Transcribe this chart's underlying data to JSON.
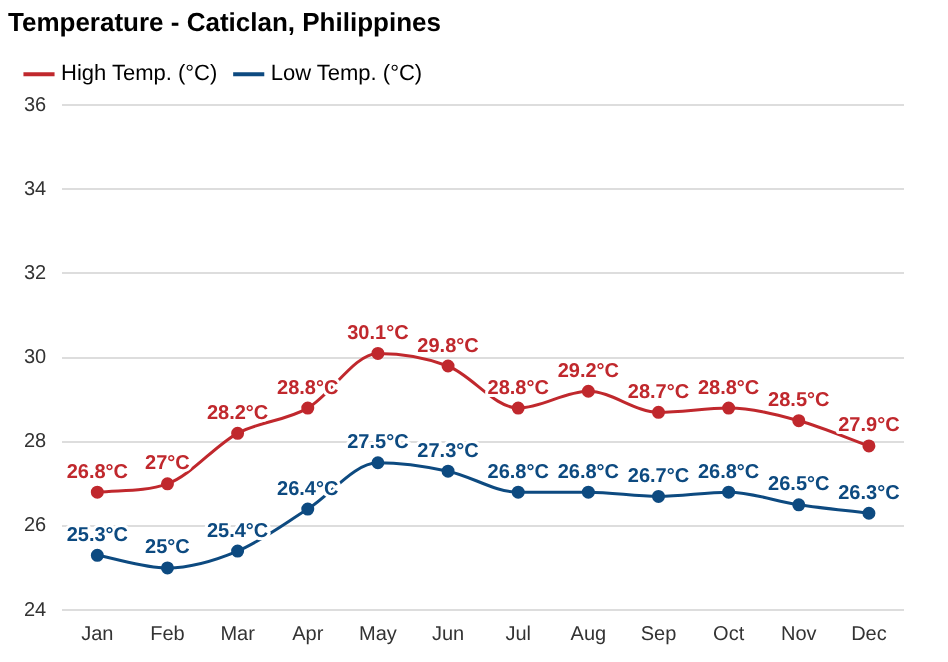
{
  "chart_data": {
    "type": "line",
    "title": "Temperature - Caticlan, Philippines",
    "categories": [
      "Jan",
      "Feb",
      "Mar",
      "Apr",
      "May",
      "Jun",
      "Jul",
      "Aug",
      "Sep",
      "Oct",
      "Nov",
      "Dec"
    ],
    "series": [
      {
        "name": "High Temp. (°C)",
        "color": "#c0282d",
        "values": [
          26.8,
          27,
          28.2,
          28.8,
          30.1,
          29.8,
          28.8,
          29.2,
          28.7,
          28.8,
          28.5,
          27.9
        ],
        "value_labels": [
          "26.8°C",
          "27°C",
          "28.2°C",
          "28.8°C",
          "30.1°C",
          "29.8°C",
          "28.8°C",
          "29.2°C",
          "28.7°C",
          "28.8°C",
          "28.5°C",
          "27.9°C"
        ]
      },
      {
        "name": "Low Temp. (°C)",
        "color": "#0d4a80",
        "values": [
          25.3,
          25,
          25.4,
          26.4,
          27.5,
          27.3,
          26.8,
          26.8,
          26.7,
          26.8,
          26.5,
          26.3
        ],
        "value_labels": [
          "25.3°C",
          "25°C",
          "25.4°C",
          "26.4°C",
          "27.5°C",
          "27.3°C",
          "26.8°C",
          "26.8°C",
          "26.7°C",
          "26.8°C",
          "26.5°C",
          "26.3°C"
        ]
      }
    ],
    "ylim": [
      24,
      36
    ],
    "yticks": [
      24,
      26,
      28,
      30,
      32,
      34,
      36
    ],
    "grid": "y",
    "legend": "top left",
    "marker": "circle",
    "line_style": "solid"
  }
}
